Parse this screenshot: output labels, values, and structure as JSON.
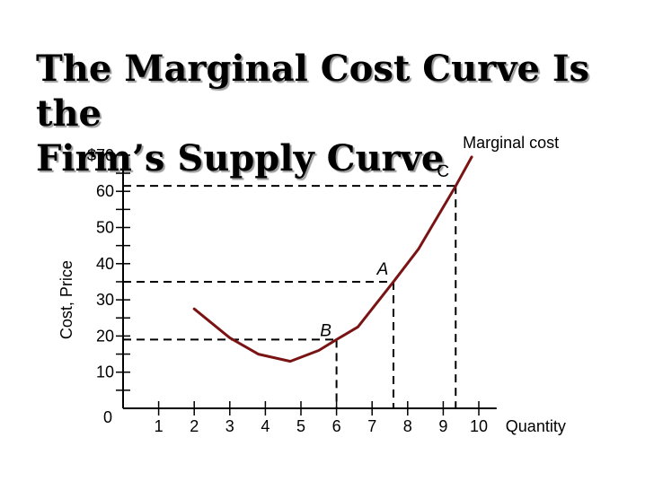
{
  "title_lines": [
    "The Marginal Cost Curve Is the",
    "Firm’s Supply Curve"
  ],
  "chart_data": {
    "type": "line",
    "title": "The Marginal Cost Curve Is the Firm’s Supply Curve",
    "xlabel": "Quantity",
    "ylabel": "Cost, Price",
    "xlim": [
      0,
      10.5
    ],
    "ylim": [
      0,
      70
    ],
    "x_ticks": [
      1,
      2,
      3,
      4,
      5,
      6,
      7,
      8,
      9,
      10
    ],
    "y_ticks": [
      {
        "value": 0,
        "label": "0"
      },
      {
        "value": 10,
        "label": "10"
      },
      {
        "value": 20,
        "label": "20"
      },
      {
        "value": 30,
        "label": "30"
      },
      {
        "value": 40,
        "label": "40"
      },
      {
        "value": 50,
        "label": "50"
      },
      {
        "value": 60,
        "label": "60"
      },
      {
        "value": 70,
        "label": "$70"
      }
    ],
    "y_minor_step": 5,
    "grid": false,
    "series": [
      {
        "name": "Marginal cost",
        "color": "#7a1414",
        "points": [
          {
            "x": 2.0,
            "y": 27.5
          },
          {
            "x": 3.0,
            "y": 19.5
          },
          {
            "x": 3.8,
            "y": 15.0
          },
          {
            "x": 4.7,
            "y": 13.0
          },
          {
            "x": 5.5,
            "y": 16.0
          },
          {
            "x": 6.0,
            "y": 19.0
          },
          {
            "x": 6.6,
            "y": 22.5
          },
          {
            "x": 7.6,
            "y": 35.0
          },
          {
            "x": 8.3,
            "y": 44.0
          },
          {
            "x": 9.35,
            "y": 61.5
          },
          {
            "x": 9.8,
            "y": 69.5
          }
        ]
      }
    ],
    "annotations": [
      {
        "label": "A",
        "italic": true,
        "x": 7.6,
        "y": 35.0
      },
      {
        "label": "B",
        "italic": true,
        "x": 6.0,
        "y": 19.0
      },
      {
        "label": "C",
        "italic": false,
        "x": 9.35,
        "y": 61.5
      }
    ]
  }
}
